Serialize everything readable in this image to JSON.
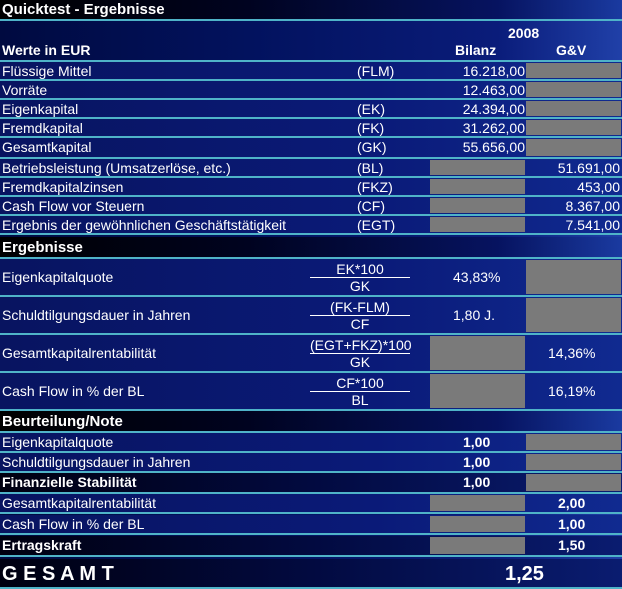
{
  "title": "Quicktest - Ergebnisse",
  "header": {
    "year": "2008",
    "unit_label": "Werte in EUR",
    "col_bilanz": "Bilanz",
    "col_guv": "G&V"
  },
  "inputs": [
    {
      "label": "Flüssige Mittel",
      "abbr": "(FLM)",
      "bilanz": "16.218,00",
      "guv": null
    },
    {
      "label": "Vorräte",
      "abbr": "",
      "bilanz": "12.463,00",
      "guv": null
    },
    {
      "label": "Eigenkapital",
      "abbr": "(EK)",
      "bilanz": "24.394,00",
      "guv": null
    },
    {
      "label": "Fremdkapital",
      "abbr": "(FK)",
      "bilanz": "31.262,00",
      "guv": null
    },
    {
      "label": "Gesamtkapital",
      "abbr": "(GK)",
      "bilanz": "55.656,00",
      "guv": null
    },
    {
      "label": "Betriebsleistung (Umsatzerlöse, etc.)",
      "abbr": "(BL)",
      "bilanz": null,
      "guv": "51.691,00"
    },
    {
      "label": "Fremdkapitalzinsen",
      "abbr": "(FKZ)",
      "bilanz": null,
      "guv": "453,00"
    },
    {
      "label": "Cash Flow vor Steuern",
      "abbr": "(CF)",
      "bilanz": null,
      "guv": "8.367,00"
    },
    {
      "label": "Ergebnis der gewöhnlichen Geschäftstätigkeit",
      "abbr": "(EGT)",
      "bilanz": null,
      "guv": "7.541,00"
    }
  ],
  "results_title": "Ergebnisse",
  "results": [
    {
      "label": "Eigenkapitalquote",
      "num": "EK*100",
      "den": "GK",
      "bilanz": "43,83%",
      "guv": null
    },
    {
      "label": "Schuldtilgungsdauer in Jahren",
      "num": "(FK-FLM)",
      "den": "CF",
      "bilanz": "1,80 J.",
      "guv": null
    },
    {
      "label": "Gesamtkapitalrentabilität",
      "num": "(EGT+FKZ)*100",
      "den": "GK",
      "bilanz": null,
      "guv": "14,36%"
    },
    {
      "label": "Cash Flow in % der BL",
      "num": "CF*100",
      "den": "BL",
      "bilanz": null,
      "guv": "16,19%"
    }
  ],
  "rating_title": "Beurteilung/Note",
  "ratings": [
    {
      "label": "Eigenkapitalquote",
      "bilanz": "1,00",
      "guv": null,
      "sum": false
    },
    {
      "label": "Schuldtilgungsdauer in Jahren",
      "bilanz": "1,00",
      "guv": null,
      "sum": false
    },
    {
      "label": "Finanzielle Stabilität",
      "bilanz": "1,00",
      "guv": null,
      "sum": true
    },
    {
      "label": "Gesamtkapitalrentabilität",
      "bilanz": null,
      "guv": "2,00",
      "sum": false
    },
    {
      "label": "Cash Flow in % der BL",
      "bilanz": null,
      "guv": "1,00",
      "sum": false
    },
    {
      "label": "Ertragskraft",
      "bilanz": null,
      "guv": "1,50",
      "sum": true
    }
  ],
  "total": {
    "label": "G E S A M T",
    "value": "1,25"
  },
  "colors": {
    "line": "#4fb3c8",
    "empty_cell": "#7a7a7a",
    "background": "#02125e"
  }
}
